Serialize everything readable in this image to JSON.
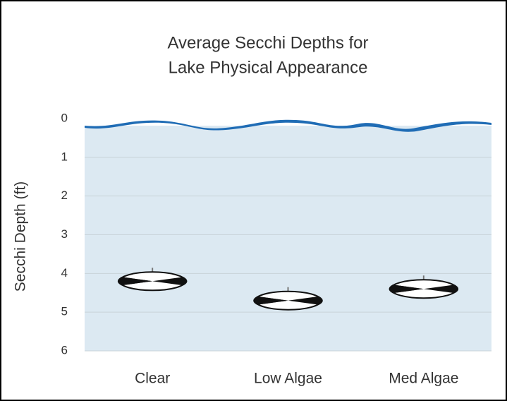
{
  "chart_data": {
    "type": "pictograph",
    "title": [
      "Average Secchi Depths for",
      "Lake Physical Appearance"
    ],
    "y_label": "Secchi Depth (ft)",
    "categories": [
      "Clear",
      "Low Algae",
      "Med Algae"
    ],
    "values": [
      4.2,
      4.7,
      4.4
    ],
    "color": "#111111",
    "ylim": [
      0,
      6
    ],
    "yticks": [
      0,
      1,
      2,
      3,
      4,
      5,
      6
    ],
    "y_inverted": true,
    "grid": true
  }
}
